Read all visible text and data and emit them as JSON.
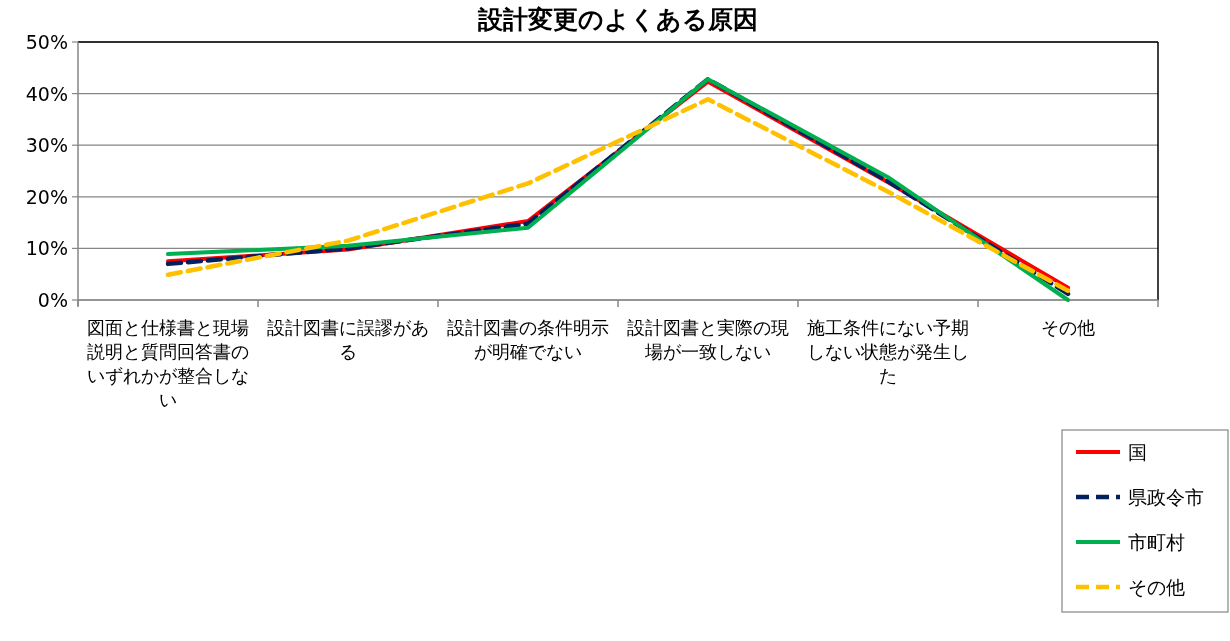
{
  "chart_data": {
    "type": "line",
    "title": "設計変更のよくある原因",
    "categories": [
      "図面と仕様書と現場説明と質問回答書のいずれかが整合しない",
      "設計図書に誤謬がある",
      "設計図書の条件明示が明確でない",
      "設計図書と実際の現場が一致しない",
      "施工条件にない予期しない状態が発生した",
      "その他"
    ],
    "series": [
      {
        "name": "国",
        "color": "#ff0000",
        "line_style": "solid",
        "values": [
          7.5,
          9.8,
          15.3,
          42.3,
          22.8,
          2.4
        ]
      },
      {
        "name": "県政令市",
        "color": "#002060",
        "line_style": "dashed",
        "values": [
          7.0,
          10.0,
          14.8,
          42.8,
          23.0,
          1.2
        ]
      },
      {
        "name": "市町村",
        "color": "#00b050",
        "line_style": "solid",
        "values": [
          8.9,
          10.5,
          14.0,
          42.8,
          23.8,
          0
        ]
      },
      {
        "name": "その他",
        "color": "#ffc000",
        "line_style": "dashed",
        "values": [
          4.9,
          11.5,
          22.6,
          38.9,
          21.0,
          1.8
        ]
      }
    ],
    "ylim": [
      0,
      50
    ],
    "yticks": [
      {
        "value": 0,
        "label": "0%"
      },
      {
        "value": 10,
        "label": "10%"
      },
      {
        "value": 20,
        "label": "20%"
      },
      {
        "value": 30,
        "label": "30%"
      },
      {
        "value": 40,
        "label": "40%"
      },
      {
        "value": 50,
        "label": "50%"
      }
    ],
    "grid": "y",
    "legend": "bottom right",
    "marker": "none"
  }
}
